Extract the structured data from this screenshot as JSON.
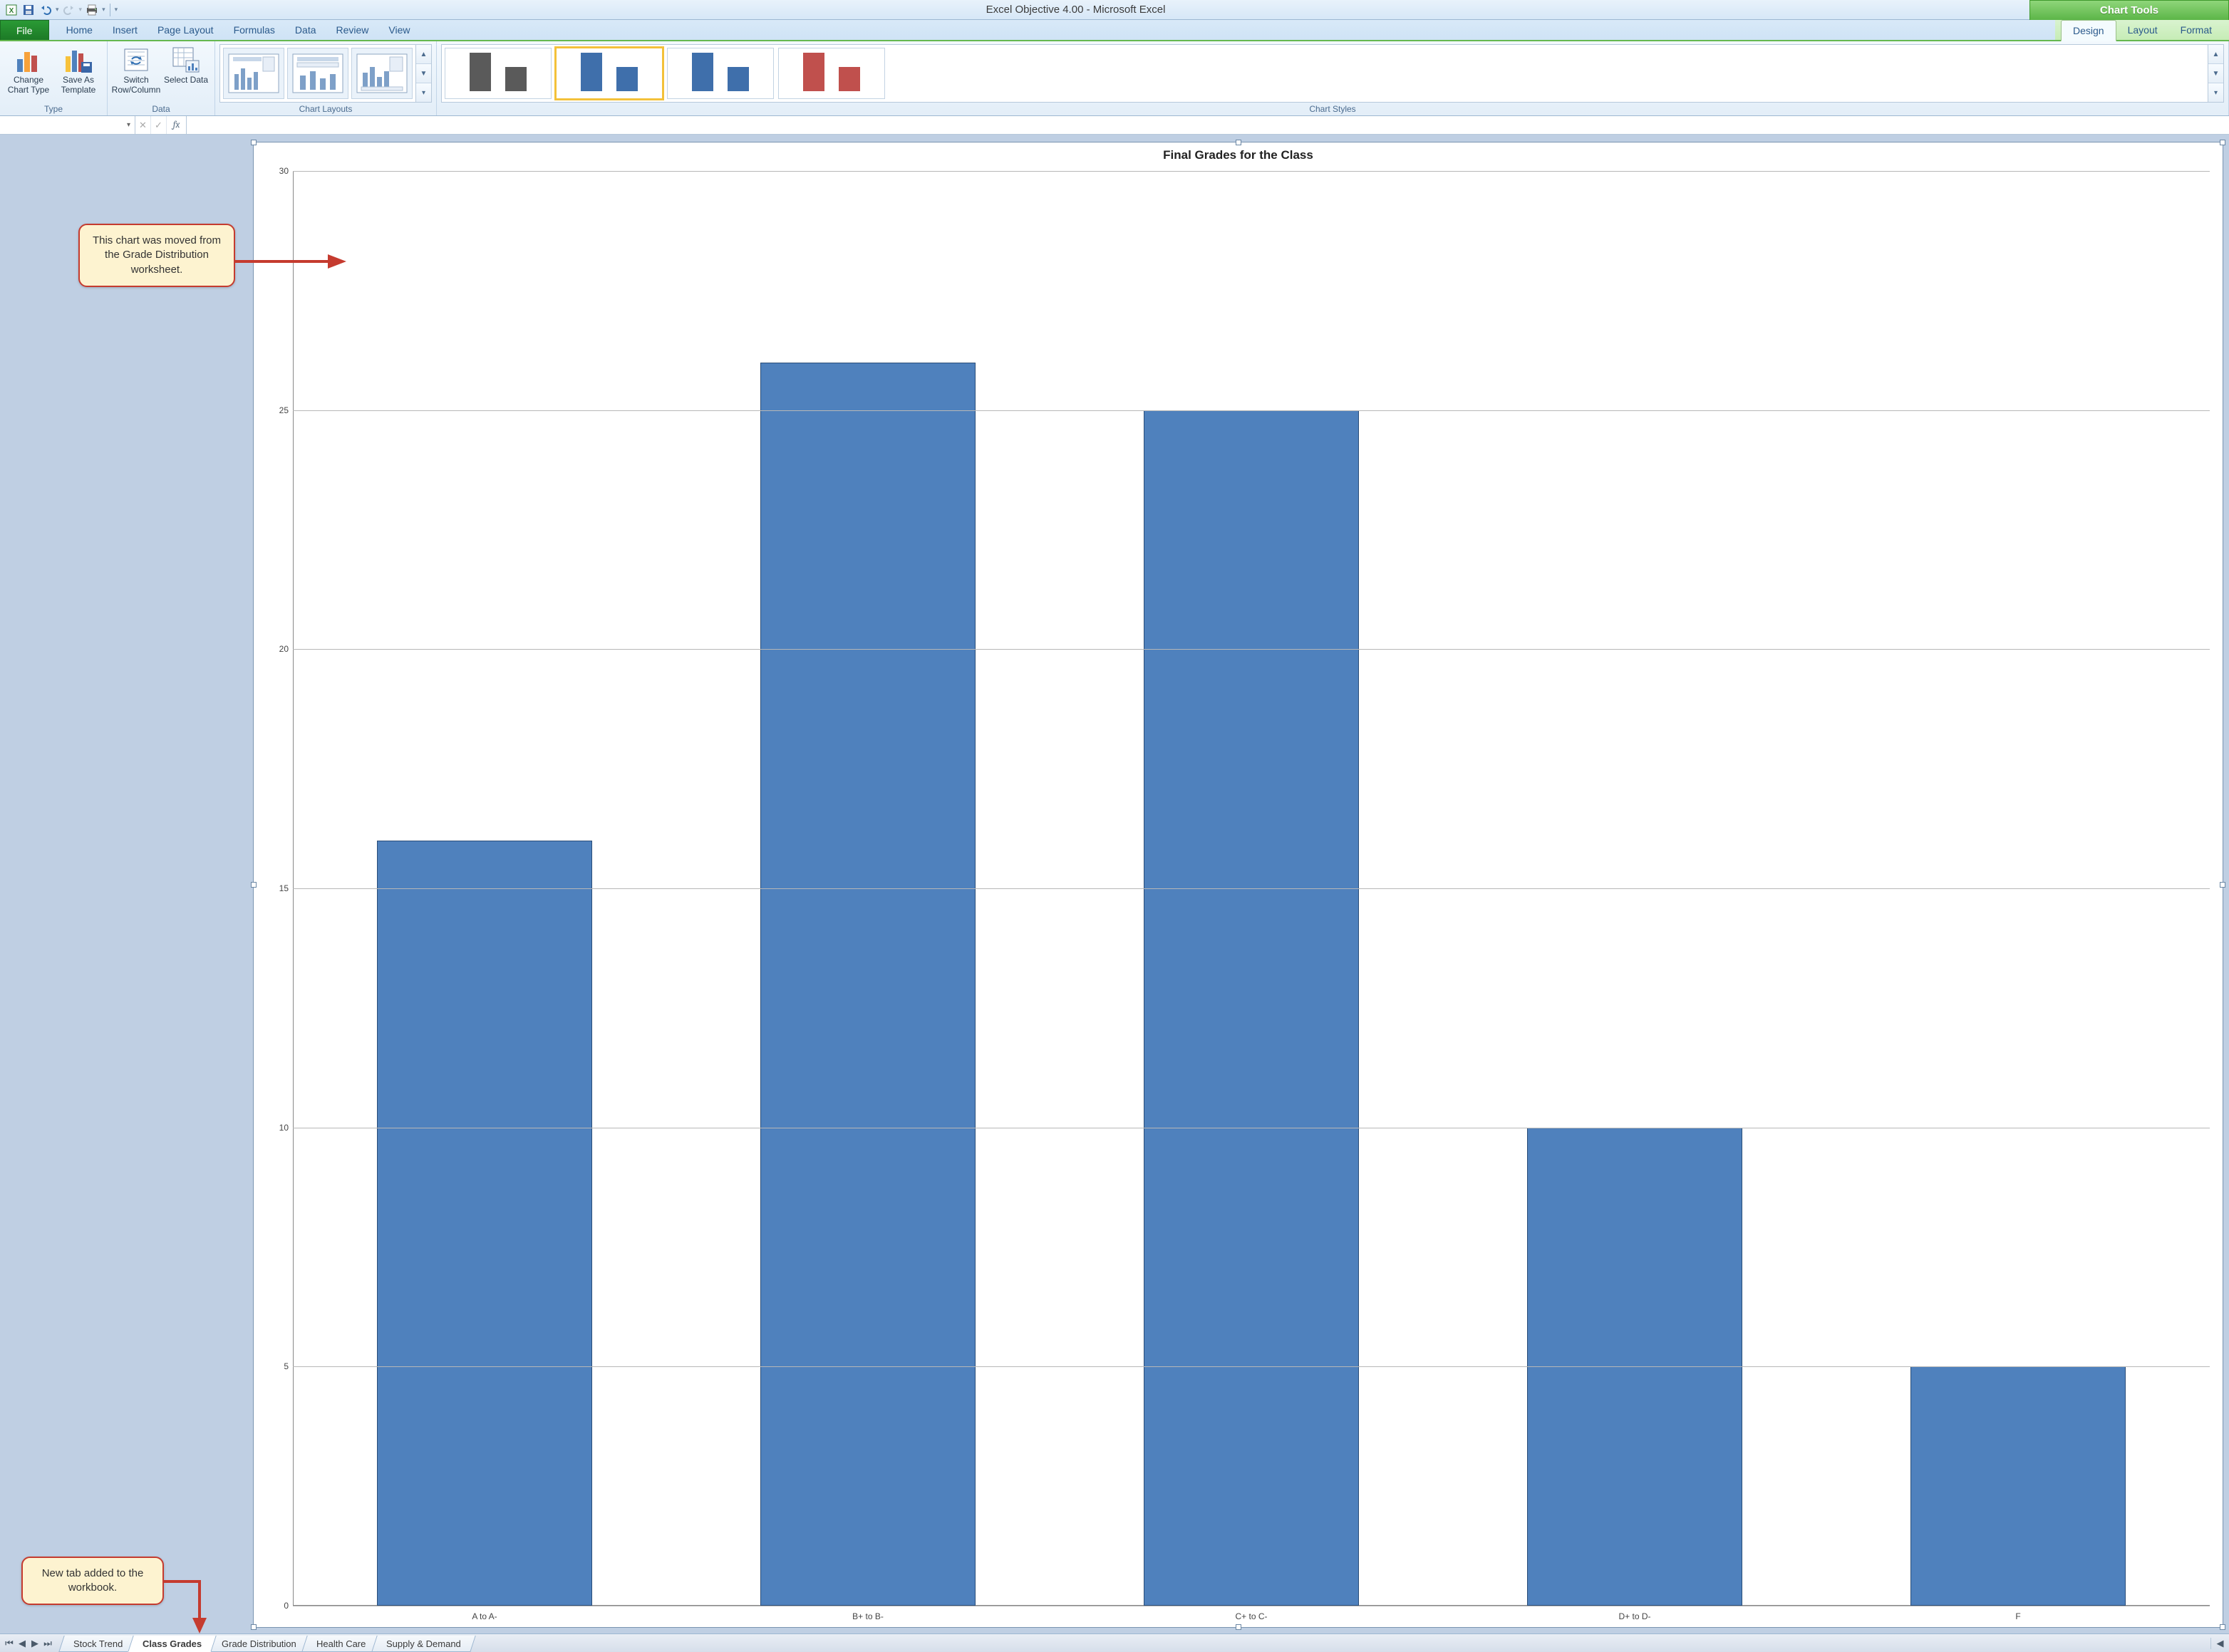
{
  "window_title": "Excel Objective 4.00 - Microsoft Excel",
  "chart_tools_label": "Chart Tools",
  "tabs": {
    "file": "File",
    "list": [
      "Home",
      "Insert",
      "Page Layout",
      "Formulas",
      "Data",
      "Review",
      "View"
    ],
    "context": [
      "Design",
      "Layout",
      "Format"
    ],
    "context_active_index": 0
  },
  "ribbon": {
    "type_group": {
      "label": "Type",
      "change_chart_type": "Change Chart Type",
      "save_as_template": "Save As Template"
    },
    "data_group": {
      "label": "Data",
      "switch": "Switch Row/Column",
      "select": "Select Data"
    },
    "layouts_group": {
      "label": "Chart Layouts"
    },
    "styles_group": {
      "label": "Chart Styles"
    }
  },
  "style_previews": [
    {
      "c1": "#5a5a5a",
      "c2": "#5a5a5a",
      "selected": false
    },
    {
      "c1": "#3f6fab",
      "c2": "#3f6fab",
      "selected": true
    },
    {
      "c1": "#3f6fab",
      "c2": "#3f6fab",
      "selected": false
    },
    {
      "c1": "#c0504d",
      "c2": "#c0504d",
      "selected": false
    }
  ],
  "formula_bar": {
    "name": "",
    "fx": "fx",
    "value": ""
  },
  "chart": {
    "type": "bar",
    "title": "Final Grades for the Class",
    "title_fontsize": 17,
    "categories": [
      "A to A-",
      "B+ to B-",
      "C+ to C-",
      "D+ to D-",
      "F"
    ],
    "values": [
      16,
      26,
      25,
      10,
      5
    ],
    "bar_color": "#4f81bd",
    "bar_border": "#2a4d78",
    "ylim": [
      0,
      30
    ],
    "ytick_step": 5,
    "grid_color": "#b7b7b7",
    "background_color": "#ffffff",
    "label_fontsize": 12
  },
  "callouts": {
    "a": "This chart was moved from the Grade Distribution worksheet.",
    "b": "New tab added to the workbook."
  },
  "sheet_tabs": {
    "list": [
      "Stock Trend",
      "Class Grades",
      "Grade Distribution",
      "Health Care",
      "Supply & Demand"
    ],
    "active_index": 1
  },
  "colors": {
    "callout_bg": "#fdf3d0",
    "callout_border": "#c53b2f",
    "sheet_bg": "#bfcfe3"
  }
}
